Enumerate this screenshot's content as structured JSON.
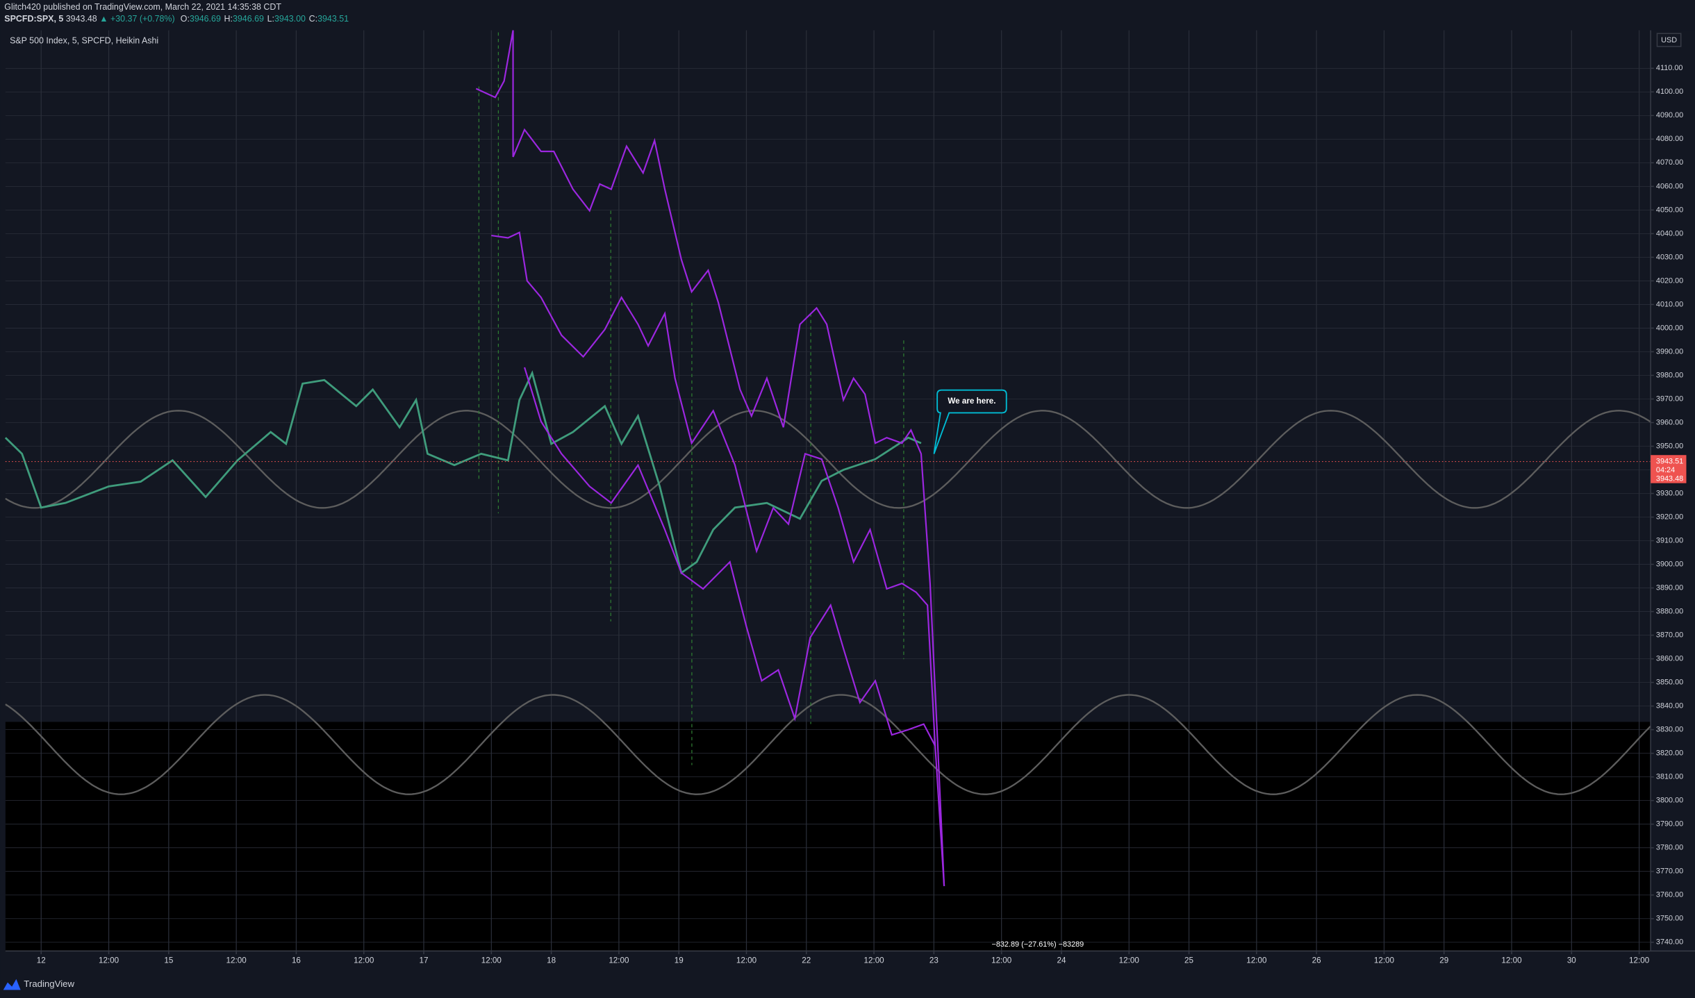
{
  "header": {
    "publisher": "Glitch420 published on TradingView.com, March 22, 2021 14:35:38 CDT",
    "symbol": "SPCFD:SPX, 5",
    "last": "3943.48",
    "change": "▲ +30.37 (+0.78%)",
    "ohlc": [
      {
        "k": "O:",
        "v": "3946.69"
      },
      {
        "k": "H:",
        "v": "3946.69"
      },
      {
        "k": "L:",
        "v": "3943.00"
      },
      {
        "k": "C:",
        "v": "3943.51"
      }
    ],
    "legend": "S&P 500 Index, 5, SPCFD, Heikin Ashi",
    "currency": "USD",
    "footer": "TradingView"
  },
  "chart_data": {
    "type": "line",
    "xlim": [
      -0.28,
      12.62
    ],
    "ylim": [
      3736.3,
      4126.1
    ],
    "grid": true,
    "xticks": [
      {
        "value": 0,
        "label": "12"
      },
      {
        "value": 0.53,
        "label": "12:00"
      },
      {
        "value": 1,
        "label": "15"
      },
      {
        "value": 1.53,
        "label": "12:00"
      },
      {
        "value": 2,
        "label": "16"
      },
      {
        "value": 2.53,
        "label": "12:00"
      },
      {
        "value": 3,
        "label": "17"
      },
      {
        "value": 3.53,
        "label": "12:00"
      },
      {
        "value": 4,
        "label": "18"
      },
      {
        "value": 4.53,
        "label": "12:00"
      },
      {
        "value": 5,
        "label": "19"
      },
      {
        "value": 5.53,
        "label": "12:00"
      },
      {
        "value": 6,
        "label": "22"
      },
      {
        "value": 6.53,
        "label": "12:00"
      },
      {
        "value": 7,
        "label": "23"
      },
      {
        "value": 7.53,
        "label": "12:00"
      },
      {
        "value": 8,
        "label": "24"
      },
      {
        "value": 8.53,
        "label": "12:00"
      },
      {
        "value": 9,
        "label": "25"
      },
      {
        "value": 9.53,
        "label": "12:00"
      },
      {
        "value": 10,
        "label": "26"
      },
      {
        "value": 10.53,
        "label": "12:00"
      },
      {
        "value": 11,
        "label": "29"
      },
      {
        "value": 11.53,
        "label": "12:00"
      },
      {
        "value": 12,
        "label": "30"
      },
      {
        "value": 12.53,
        "label": "12:00"
      }
    ],
    "yticks": [
      {
        "value": 3740,
        "label": "3740.00"
      },
      {
        "value": 3750,
        "label": "3750.00"
      },
      {
        "value": 3760,
        "label": "3760.00"
      },
      {
        "value": 3770,
        "label": "3770.00"
      },
      {
        "value": 3780,
        "label": "3780.00"
      },
      {
        "value": 3790,
        "label": "3790.00"
      },
      {
        "value": 3800,
        "label": "3800.00"
      },
      {
        "value": 3810,
        "label": "3810.00"
      },
      {
        "value": 3820,
        "label": "3820.00"
      },
      {
        "value": 3830,
        "label": "3830.00"
      },
      {
        "value": 3840,
        "label": "3840.00"
      },
      {
        "value": 3850,
        "label": "3850.00"
      },
      {
        "value": 3860,
        "label": "3860.00"
      },
      {
        "value": 3870,
        "label": "3870.00"
      },
      {
        "value": 3880,
        "label": "3880.00"
      },
      {
        "value": 3890,
        "label": "3890.00"
      },
      {
        "value": 3900,
        "label": "3900.00"
      },
      {
        "value": 3910,
        "label": "3910.00"
      },
      {
        "value": 3920,
        "label": "3920.00"
      },
      {
        "value": 3930,
        "label": "3930.00"
      },
      {
        "value": 3940,
        "label": "3940.00"
      },
      {
        "value": 3950,
        "label": "3950.00"
      },
      {
        "value": 3960,
        "label": "3960.00"
      },
      {
        "value": 3970,
        "label": "3970.00"
      },
      {
        "value": 3980,
        "label": "3980.00"
      },
      {
        "value": 3990,
        "label": "3990.00"
      },
      {
        "value": 4000,
        "label": "4000.00"
      },
      {
        "value": 4010,
        "label": "4010.00"
      },
      {
        "value": 4020,
        "label": "4020.00"
      },
      {
        "value": 4030,
        "label": "4030.00"
      },
      {
        "value": 4040,
        "label": "4040.00"
      },
      {
        "value": 4050,
        "label": "4050.00"
      },
      {
        "value": 4060,
        "label": "4060.00"
      },
      {
        "value": 4070,
        "label": "4070.00"
      },
      {
        "value": 4080,
        "label": "4080.00"
      },
      {
        "value": 4090,
        "label": "4090.00"
      },
      {
        "value": 4100,
        "label": "4100.00"
      },
      {
        "value": 4110,
        "label": "4110.00"
      }
    ],
    "series": [
      {
        "color": "#3f9c7c",
        "x": [
          -0.28,
          -0.15,
          0,
          0.19,
          0.53,
          0.78,
          1.03,
          1.29,
          1.54,
          1.8,
          1.92,
          2.05,
          2.22,
          2.47,
          2.6,
          2.81,
          2.94,
          3.03,
          3.24,
          3.45,
          3.66,
          3.75,
          3.85,
          4.0,
          4.17,
          4.42,
          4.55,
          4.68,
          4.85,
          5.02,
          5.14,
          5.27,
          5.44,
          5.69,
          5.95,
          6.12,
          6.29,
          6.54,
          6.8,
          6.9
        ],
        "values": [
          3953.6,
          3946.8,
          3924,
          3926,
          3933,
          3935,
          3944,
          3928.5,
          3944,
          3956,
          3951,
          3976.5,
          3978,
          3967,
          3974,
          3958,
          3969.6,
          3946.8,
          3942,
          3946.8,
          3944,
          3969.6,
          3981,
          3951,
          3956,
          3967,
          3951,
          3962.8,
          3933,
          3896.4,
          3901,
          3914.7,
          3924,
          3926,
          3919.3,
          3935.3,
          3940,
          3944.5,
          3953.6,
          3951.3
        ]
      },
      {
        "color": "#9c27e0",
        "x": [
          3.41,
          3.56,
          3.63,
          3.7,
          3.7,
          3.79,
          3.92,
          4.02,
          4.17,
          4.3,
          4.38,
          4.47,
          4.59,
          4.72,
          4.81,
          4.89,
          5.02,
          5.1,
          5.23,
          5.31,
          5.48,
          5.57,
          5.69,
          5.82,
          5.95,
          6.08,
          6.16,
          6.29,
          6.37,
          6.46,
          6.54,
          6.63,
          6.75,
          6.82,
          6.9,
          6.97,
          7.03,
          7.08
        ],
        "values": [
          4101.4,
          4097.7,
          4104.6,
          4126.1,
          4072.5,
          4084,
          4074.8,
          4074.8,
          4058.8,
          4049.7,
          4061,
          4058.8,
          4077,
          4065.7,
          4079.4,
          4058.8,
          4029,
          4015.4,
          4024.5,
          4010.8,
          3974,
          3962.8,
          3978.8,
          3958,
          4001.6,
          4008.5,
          4001.6,
          3969.6,
          3978.8,
          3972,
          3951.3,
          3953.6,
          3951.3,
          3956.8,
          3946.8,
          3891.9,
          3823.2,
          3763.8
        ]
      },
      {
        "color": "#9c27e0",
        "x": [
          3.53,
          3.66,
          3.75,
          3.81,
          3.92,
          4.08,
          4.25,
          4.42,
          4.55,
          4.68,
          4.76,
          4.89,
          4.97,
          5.1,
          5.27,
          5.44,
          5.61,
          5.74,
          5.86,
          5.99,
          6.12,
          6.25,
          6.37,
          6.5,
          6.63,
          6.75,
          6.86,
          6.95,
          7.01
        ],
        "values": [
          4039.2,
          4038.2,
          4040.5,
          4020,
          4013,
          3997,
          3987.9,
          3999.4,
          4013,
          4001.6,
          3992.5,
          4006.2,
          3978.8,
          3951.3,
          3965,
          3942,
          3905.6,
          3923.9,
          3917,
          3946.8,
          3944.5,
          3923.9,
          3901,
          3914.7,
          3889.6,
          3891.9,
          3888.2,
          3882.7,
          3823.2
        ]
      },
      {
        "color": "#9c27e0",
        "x": [
          3.79,
          3.92,
          4.08,
          4.3,
          4.47,
          4.68,
          4.89,
          5.02,
          5.19,
          5.4,
          5.53,
          5.65,
          5.78,
          5.91,
          6.03,
          6.19,
          6.29,
          6.42,
          6.54,
          6.67,
          6.8,
          6.92,
          7.01,
          7.08
        ],
        "values": [
          3983.4,
          3960.5,
          3946.8,
          3933,
          3926,
          3942,
          3914.7,
          3896.4,
          3889.6,
          3901,
          3873.6,
          3850.7,
          3855.3,
          3834.7,
          3869,
          3882.7,
          3864.4,
          3841.5,
          3850.7,
          3827.8,
          3830,
          3832.4,
          3823.2,
          3763.8
        ]
      }
    ],
    "price_tag": {
      "value": 3943.51,
      "label": "3943.51"
    },
    "countdown": "04:24",
    "prev_close": "3943.48",
    "annotation": "We are here.",
    "measure": "−832.89 (−27.61%) −83289"
  }
}
